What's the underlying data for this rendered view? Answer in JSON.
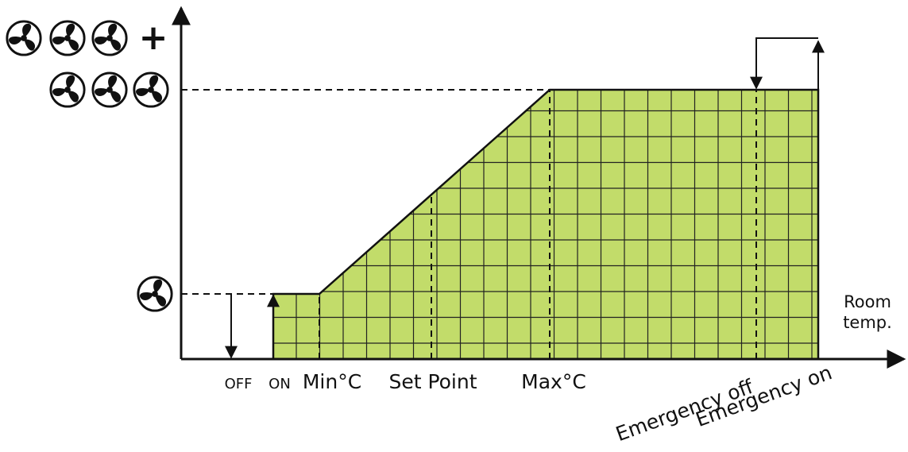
{
  "plus": "+",
  "markers": [
    {
      "label": "OFF"
    },
    {
      "label": "ON"
    },
    {
      "label": "Min°C"
    },
    {
      "label": "Set Point"
    },
    {
      "label": "Max°C"
    },
    {
      "label": "Emergency off"
    },
    {
      "label": "Emergency on"
    }
  ],
  "x_axis_label": [
    "Room",
    "temp."
  ]
}
